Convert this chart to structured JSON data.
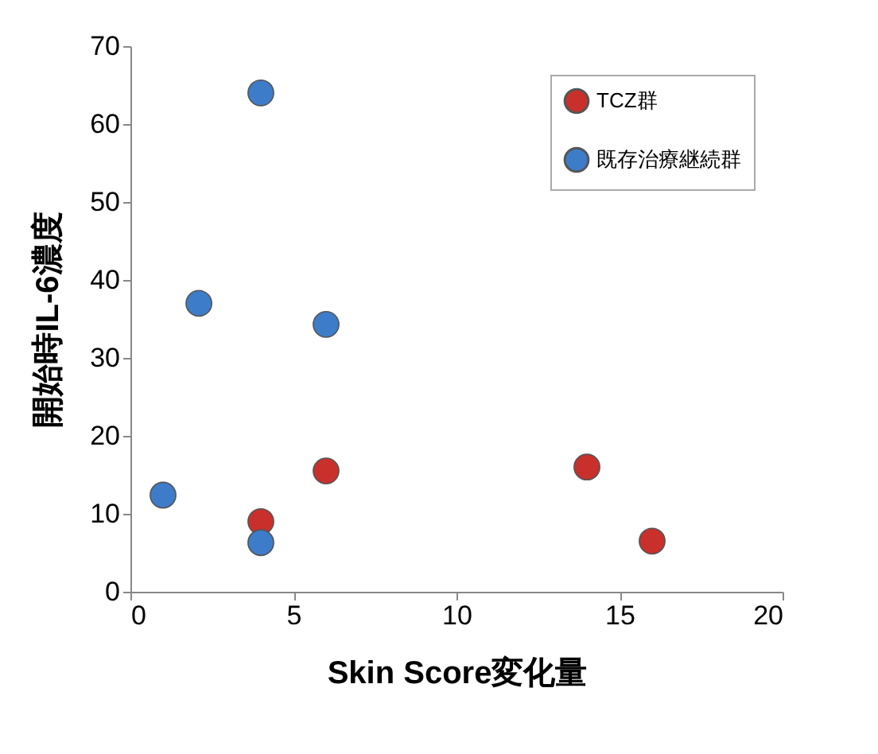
{
  "chart_data": {
    "type": "scatter",
    "xlabel": "Skin Score変化量",
    "ylabel": "開始時IL-6濃度",
    "xlim": [
      0,
      20
    ],
    "xticks": [
      0,
      5,
      10,
      15,
      20
    ],
    "ylim": [
      0,
      70
    ],
    "yticks": [
      0,
      10,
      20,
      30,
      40,
      50,
      60,
      70
    ],
    "grid": false,
    "legend": "top right",
    "marker": "circle",
    "series": [
      {
        "name": "TCZ群",
        "color": "#c9302c",
        "x": [
          4,
          6,
          14,
          16
        ],
        "values": [
          9,
          15.5,
          16,
          6.5
        ]
      },
      {
        "name": "既存治療継続群",
        "color": "#3d7cc9",
        "x": [
          4,
          2.1,
          6,
          1,
          4
        ],
        "values": [
          64,
          37,
          34.3,
          12.4,
          6.3
        ]
      }
    ]
  }
}
